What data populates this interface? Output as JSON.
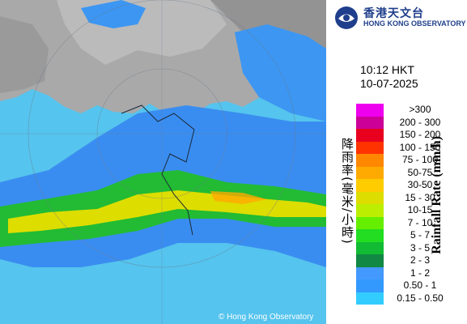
{
  "logo": {
    "chinese": "香港天文台",
    "english": "HONG KONG OBSERVATORY"
  },
  "timestamp": {
    "time": "10:12 HKT",
    "date": "10-07-2025"
  },
  "legend": {
    "title_chinese": "降雨率(毫米/小時)",
    "title_english": "Rainfall Rate (mm/h)",
    "items": [
      {
        "label": ">300",
        "color": "#ee00ee"
      },
      {
        "label": "200 - 300",
        "color": "#cc0099"
      },
      {
        "label": "150 - 200",
        "color": "#e8001e"
      },
      {
        "label": "100 - 150",
        "color": "#ff3300"
      },
      {
        "label": "75 - 100",
        "color": "#ff8800"
      },
      {
        "label": "50-75",
        "color": "#ffaa00"
      },
      {
        "label": "30-50",
        "color": "#ffcc00"
      },
      {
        "label": "15 - 30",
        "color": "#dddd00"
      },
      {
        "label": "10-15",
        "color": "#bbee00"
      },
      {
        "label": "7 - 10",
        "color": "#66ee00"
      },
      {
        "label": "5 - 7",
        "color": "#22dd22"
      },
      {
        "label": "3 - 5",
        "color": "#11bb33"
      },
      {
        "label": "2 - 3",
        "color": "#118844"
      },
      {
        "label": "1 - 2",
        "color": "#4499ff"
      },
      {
        "label": "0.50 - 1",
        "color": "#3399ff"
      },
      {
        "label": "0.15 - 0.50",
        "color": "#33ccff"
      }
    ]
  },
  "map": {
    "sea_color": "#55c4ee",
    "land_color": "#a8a8a8",
    "copyright": "© Hong Kong Observatory"
  }
}
